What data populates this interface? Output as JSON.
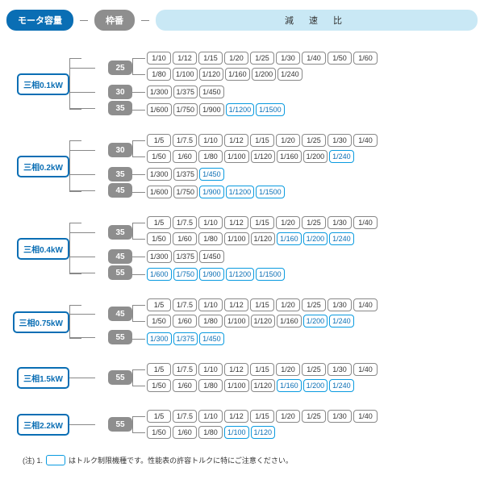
{
  "header": {
    "motor_label": "モータ容量",
    "frame_label": "枠番",
    "ratio_label": "減 速 比"
  },
  "colors": {
    "brand_blue": "#0a6eb4",
    "light_blue": "#c9e8f5",
    "gray": "#8e8e8e",
    "torque_border": "#0a9be0",
    "text": "#333333",
    "background": "#ffffff"
  },
  "groups": [
    {
      "motor": "三相0.1kW",
      "frames": [
        {
          "frame": "25",
          "lines": [
            [
              [
                "1/10",
                0
              ],
              [
                "1/12",
                0
              ],
              [
                "1/15",
                0
              ],
              [
                "1/20",
                0
              ],
              [
                "1/25",
                0
              ],
              [
                "1/30",
                0
              ],
              [
                "1/40",
                0
              ],
              [
                "1/50",
                0
              ],
              [
                "1/60",
                0
              ]
            ],
            [
              [
                "1/80",
                0
              ],
              [
                "1/100",
                0
              ],
              [
                "1/120",
                0
              ],
              [
                "1/160",
                0
              ],
              [
                "1/200",
                0
              ],
              [
                "1/240",
                0
              ]
            ]
          ]
        },
        {
          "frame": "30",
          "lines": [
            [
              [
                "1/300",
                0
              ],
              [
                "1/375",
                0
              ],
              [
                "1/450",
                0
              ]
            ]
          ]
        },
        {
          "frame": "35",
          "lines": [
            [
              [
                "1/600",
                0
              ],
              [
                "1/750",
                0
              ],
              [
                "1/900",
                0
              ],
              [
                "1/1200",
                1
              ],
              [
                "1/1500",
                1
              ]
            ]
          ]
        }
      ]
    },
    {
      "motor": "三相0.2kW",
      "frames": [
        {
          "frame": "30",
          "lines": [
            [
              [
                "1/5",
                0
              ],
              [
                "1/7.5",
                0
              ],
              [
                "1/10",
                0
              ],
              [
                "1/12",
                0
              ],
              [
                "1/15",
                0
              ],
              [
                "1/20",
                0
              ],
              [
                "1/25",
                0
              ],
              [
                "1/30",
                0
              ],
              [
                "1/40",
                0
              ]
            ],
            [
              [
                "1/50",
                0
              ],
              [
                "1/60",
                0
              ],
              [
                "1/80",
                0
              ],
              [
                "1/100",
                0
              ],
              [
                "1/120",
                0
              ],
              [
                "1/160",
                0
              ],
              [
                "1/200",
                0
              ],
              [
                "1/240",
                1
              ]
            ]
          ]
        },
        {
          "frame": "35",
          "lines": [
            [
              [
                "1/300",
                0
              ],
              [
                "1/375",
                0
              ],
              [
                "1/450",
                1
              ]
            ]
          ]
        },
        {
          "frame": "45",
          "lines": [
            [
              [
                "1/600",
                0
              ],
              [
                "1/750",
                0
              ],
              [
                "1/900",
                1
              ],
              [
                "1/1200",
                1
              ],
              [
                "1/1500",
                1
              ]
            ]
          ]
        }
      ]
    },
    {
      "motor": "三相0.4kW",
      "frames": [
        {
          "frame": "35",
          "lines": [
            [
              [
                "1/5",
                0
              ],
              [
                "1/7.5",
                0
              ],
              [
                "1/10",
                0
              ],
              [
                "1/12",
                0
              ],
              [
                "1/15",
                0
              ],
              [
                "1/20",
                0
              ],
              [
                "1/25",
                0
              ],
              [
                "1/30",
                0
              ],
              [
                "1/40",
                0
              ]
            ],
            [
              [
                "1/50",
                0
              ],
              [
                "1/60",
                0
              ],
              [
                "1/80",
                0
              ],
              [
                "1/100",
                0
              ],
              [
                "1/120",
                0
              ],
              [
                "1/160",
                1
              ],
              [
                "1/200",
                1
              ],
              [
                "1/240",
                1
              ]
            ]
          ]
        },
        {
          "frame": "45",
          "lines": [
            [
              [
                "1/300",
                0
              ],
              [
                "1/375",
                0
              ],
              [
                "1/450",
                0
              ]
            ]
          ]
        },
        {
          "frame": "55",
          "lines": [
            [
              [
                "1/600",
                1
              ],
              [
                "1/750",
                1
              ],
              [
                "1/900",
                1
              ],
              [
                "1/1200",
                1
              ],
              [
                "1/1500",
                1
              ]
            ]
          ]
        }
      ]
    },
    {
      "motor": "三相0.75kW",
      "frames": [
        {
          "frame": "45",
          "lines": [
            [
              [
                "1/5",
                0
              ],
              [
                "1/7.5",
                0
              ],
              [
                "1/10",
                0
              ],
              [
                "1/12",
                0
              ],
              [
                "1/15",
                0
              ],
              [
                "1/20",
                0
              ],
              [
                "1/25",
                0
              ],
              [
                "1/30",
                0
              ],
              [
                "1/40",
                0
              ]
            ],
            [
              [
                "1/50",
                0
              ],
              [
                "1/60",
                0
              ],
              [
                "1/80",
                0
              ],
              [
                "1/100",
                0
              ],
              [
                "1/120",
                0
              ],
              [
                "1/160",
                0
              ],
              [
                "1/200",
                1
              ],
              [
                "1/240",
                1
              ]
            ]
          ]
        },
        {
          "frame": "55",
          "lines": [
            [
              [
                "1/300",
                1
              ],
              [
                "1/375",
                1
              ],
              [
                "1/450",
                1
              ]
            ]
          ]
        }
      ]
    },
    {
      "motor": "三相1.5kW",
      "frames": [
        {
          "frame": "55",
          "lines": [
            [
              [
                "1/5",
                0
              ],
              [
                "1/7.5",
                0
              ],
              [
                "1/10",
                0
              ],
              [
                "1/12",
                0
              ],
              [
                "1/15",
                0
              ],
              [
                "1/20",
                0
              ],
              [
                "1/25",
                0
              ],
              [
                "1/30",
                0
              ],
              [
                "1/40",
                0
              ]
            ],
            [
              [
                "1/50",
                0
              ],
              [
                "1/60",
                0
              ],
              [
                "1/80",
                0
              ],
              [
                "1/100",
                0
              ],
              [
                "1/120",
                0
              ],
              [
                "1/160",
                1
              ],
              [
                "1/200",
                1
              ],
              [
                "1/240",
                1
              ]
            ]
          ]
        }
      ]
    },
    {
      "motor": "三相2.2kW",
      "frames": [
        {
          "frame": "55",
          "lines": [
            [
              [
                "1/5",
                0
              ],
              [
                "1/7.5",
                0
              ],
              [
                "1/10",
                0
              ],
              [
                "1/12",
                0
              ],
              [
                "1/15",
                0
              ],
              [
                "1/20",
                0
              ],
              [
                "1/25",
                0
              ],
              [
                "1/30",
                0
              ],
              [
                "1/40",
                0
              ]
            ],
            [
              [
                "1/50",
                0
              ],
              [
                "1/60",
                0
              ],
              [
                "1/80",
                0
              ],
              [
                "1/100",
                1
              ],
              [
                "1/120",
                1
              ]
            ]
          ]
        }
      ]
    }
  ],
  "note": {
    "prefix": "(注) 1.",
    "text": "はトルク制限機種です。性能表の許容トルクに特にご注意ください。"
  }
}
